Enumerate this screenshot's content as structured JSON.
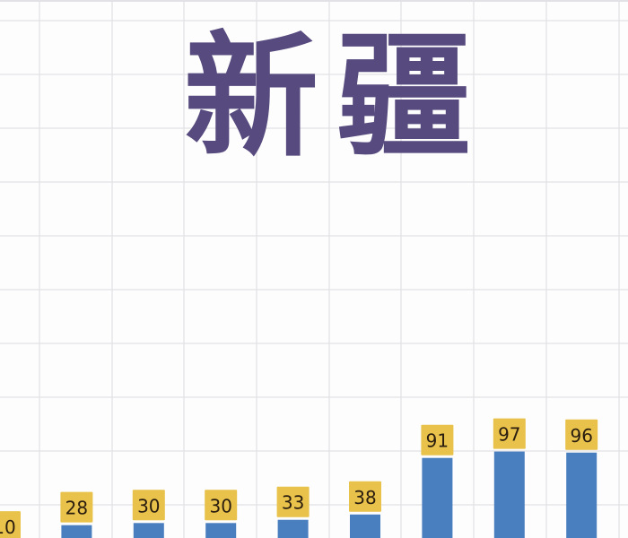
{
  "chart_data": {
    "type": "bar",
    "title": "新疆",
    "values": [
      10,
      28,
      30,
      30,
      33,
      38,
      91,
      97,
      96
    ],
    "data_labels": [
      "10",
      "28",
      "30",
      "30",
      "33",
      "38",
      "91",
      "97",
      "96"
    ],
    "grid": true,
    "colors": {
      "bar": "#4a7fbf",
      "label_box": "#e8c24a",
      "title": "#574a7e",
      "grid": "#e2e2e6",
      "label_text": "#2a1d10"
    }
  }
}
